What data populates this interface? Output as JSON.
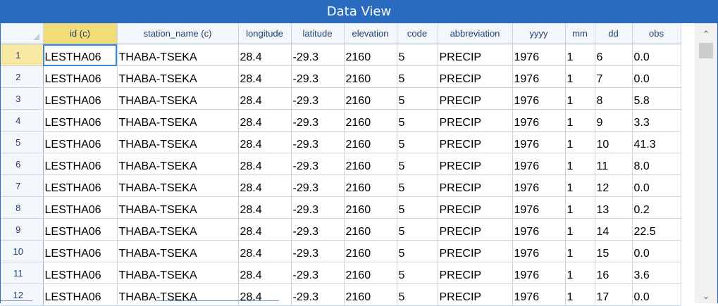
{
  "window": {
    "title": "Data View"
  },
  "columns": [
    "id (c)",
    "station_name (c)",
    "longitude",
    "latitude",
    "elevation",
    "code",
    "abbreviation",
    "yyyy",
    "mm",
    "dd",
    "obs"
  ],
  "rows": [
    {
      "n": "1",
      "cells": [
        "LESTHA06",
        "THABA-TSEKA",
        "28.4",
        "-29.3",
        "2160",
        "5",
        "PRECIP",
        "1976",
        "1",
        "6",
        "0.0"
      ]
    },
    {
      "n": "2",
      "cells": [
        "LESTHA06",
        "THABA-TSEKA",
        "28.4",
        "-29.3",
        "2160",
        "5",
        "PRECIP",
        "1976",
        "1",
        "7",
        "0.0"
      ]
    },
    {
      "n": "3",
      "cells": [
        "LESTHA06",
        "THABA-TSEKA",
        "28.4",
        "-29.3",
        "2160",
        "5",
        "PRECIP",
        "1976",
        "1",
        "8",
        "5.8"
      ]
    },
    {
      "n": "4",
      "cells": [
        "LESTHA06",
        "THABA-TSEKA",
        "28.4",
        "-29.3",
        "2160",
        "5",
        "PRECIP",
        "1976",
        "1",
        "9",
        "3.3"
      ]
    },
    {
      "n": "5",
      "cells": [
        "LESTHA06",
        "THABA-TSEKA",
        "28.4",
        "-29.3",
        "2160",
        "5",
        "PRECIP",
        "1976",
        "1",
        "10",
        "41.3"
      ]
    },
    {
      "n": "6",
      "cells": [
        "LESTHA06",
        "THABA-TSEKA",
        "28.4",
        "-29.3",
        "2160",
        "5",
        "PRECIP",
        "1976",
        "1",
        "11",
        "8.0"
      ]
    },
    {
      "n": "7",
      "cells": [
        "LESTHA06",
        "THABA-TSEKA",
        "28.4",
        "-29.3",
        "2160",
        "5",
        "PRECIP",
        "1976",
        "1",
        "12",
        "0.0"
      ]
    },
    {
      "n": "8",
      "cells": [
        "LESTHA06",
        "THABA-TSEKA",
        "28.4",
        "-29.3",
        "2160",
        "5",
        "PRECIP",
        "1976",
        "1",
        "13",
        "0.2"
      ]
    },
    {
      "n": "9",
      "cells": [
        "LESTHA06",
        "THABA-TSEKA",
        "28.4",
        "-29.3",
        "2160",
        "5",
        "PRECIP",
        "1976",
        "1",
        "14",
        "22.5"
      ]
    },
    {
      "n": "10",
      "cells": [
        "LESTHA06",
        "THABA-TSEKA",
        "28.4",
        "-29.3",
        "2160",
        "5",
        "PRECIP",
        "1976",
        "1",
        "15",
        "0.0"
      ]
    },
    {
      "n": "11",
      "cells": [
        "LESTHA06",
        "THABA-TSEKA",
        "28.4",
        "-29.3",
        "2160",
        "5",
        "PRECIP",
        "1976",
        "1",
        "16",
        "3.6"
      ]
    },
    {
      "n": "12",
      "cells": [
        "LESTHA06",
        "THABA-TSEKA",
        "28.4",
        "-29.3",
        "2160",
        "5",
        "PRECIP",
        "1976",
        "1",
        "17",
        "0.0"
      ]
    }
  ],
  "scrollbar": {
    "up_icon": "chevron-up-icon",
    "down_icon": "chevron-down-icon"
  },
  "colors": {
    "titlebar": "#2b6bbf",
    "id_header": "#f2dc7a",
    "selected_row_header": "#f7e9a3",
    "selection_border": "#3a8ad6"
  }
}
